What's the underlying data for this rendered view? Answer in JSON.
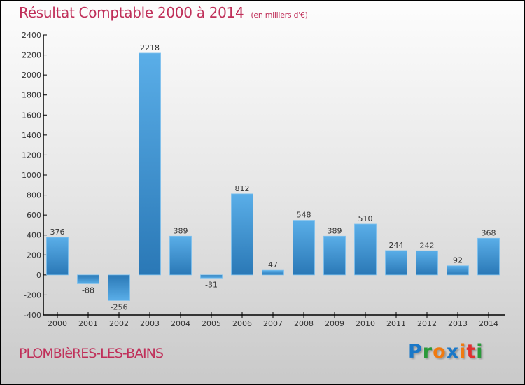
{
  "chart_data": {
    "type": "bar",
    "title": "Résultat Comptable 2000 à 2014",
    "subtitle": "(en milliers d'€)",
    "categories": [
      "2000",
      "2001",
      "2002",
      "2003",
      "2004",
      "2005",
      "2006",
      "2007",
      "2008",
      "2009",
      "2010",
      "2011",
      "2012",
      "2013",
      "2014"
    ],
    "values": [
      376,
      -88,
      -256,
      2218,
      389,
      -31,
      812,
      47,
      548,
      389,
      510,
      244,
      242,
      92,
      368
    ],
    "ylim": [
      -400,
      2400
    ],
    "yticks": [
      -400,
      -200,
      0,
      200,
      400,
      600,
      800,
      1000,
      1200,
      1400,
      1600,
      1800,
      2000,
      2200,
      2400
    ],
    "xlabel": "",
    "ylabel": "",
    "grid": false,
    "bar_color_light": "#5aaee8",
    "bar_color_dark": "#2a78b6"
  },
  "location": "PLOMBIèRES-LES-BAINS",
  "logo": {
    "text": "Proxiti",
    "letters": [
      {
        "c": "P",
        "color": "#1a78c8"
      },
      {
        "c": "r",
        "color": "#2a9a3a"
      },
      {
        "c": "o",
        "color": "#f07a10"
      },
      {
        "c": "x",
        "color": "#1a78c8"
      },
      {
        "c": "i",
        "color": "#f07a10"
      },
      {
        "c": "t",
        "color": "#e03030"
      },
      {
        "c": "i",
        "color": "#2a9a3a"
      }
    ]
  }
}
